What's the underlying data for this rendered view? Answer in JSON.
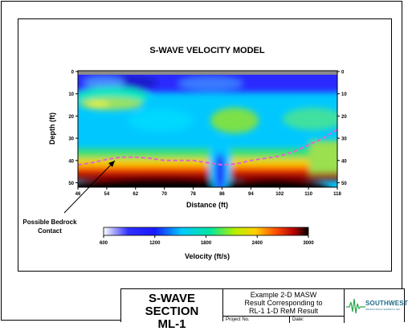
{
  "chart_data": {
    "type": "heatmap",
    "title": "S-WAVE VELOCITY MODEL",
    "xlabel": "Distance (ft)",
    "ylabel": "Depth (ft)",
    "xlim": [
      46,
      118
    ],
    "ylim": [
      0,
      52
    ],
    "x_ticks": [
      "46",
      "54",
      "62",
      "70",
      "78",
      "86",
      "94",
      "102",
      "110",
      "118"
    ],
    "y_ticks": [
      "0",
      "10",
      "20",
      "30",
      "40",
      "50"
    ],
    "colorbar": {
      "label": "Velocity (ft/s)",
      "range": [
        600,
        3000
      ],
      "ticks": [
        "600",
        "1200",
        "1800",
        "2400",
        "3000"
      ],
      "colors": [
        "#ffffff",
        "#1a1aff",
        "#00c8ff",
        "#00e6a0",
        "#b4f000",
        "#ffd000",
        "#ff5000",
        "#b40000",
        "#000000"
      ]
    },
    "annotation": {
      "text_line1": "Possible Bedrock",
      "text_line2": "Contact"
    },
    "bedrock_contact": {
      "x": [
        46,
        50,
        54,
        58,
        62,
        66,
        70,
        74,
        78,
        82,
        86,
        90,
        94,
        98,
        102,
        106,
        110,
        114,
        118
      ],
      "depth": [
        42,
        41,
        39.5,
        38.5,
        38.5,
        39,
        40,
        40,
        40,
        41,
        42,
        41.5,
        40,
        39,
        38,
        36,
        33,
        30,
        26
      ]
    }
  },
  "title_block": {
    "section_line1": "S-WAVE SECTION",
    "section_line2": "ML-1",
    "desc_line1": "Example 2-D MASW",
    "desc_line2": "Result Corresponding to",
    "desc_line3": "RL-1 1-D ReM Result",
    "project_label": "Project No.",
    "date_label": "Date:",
    "company_name": "SOUTHWEST",
    "company_sub": "GEOPHYSICAL SURVEYS, INC."
  },
  "colors": {
    "title_text": "#000000",
    "contact_line": "#e066d0",
    "logo": "#1f6b8a",
    "logo_wave": "#2aa84a"
  }
}
